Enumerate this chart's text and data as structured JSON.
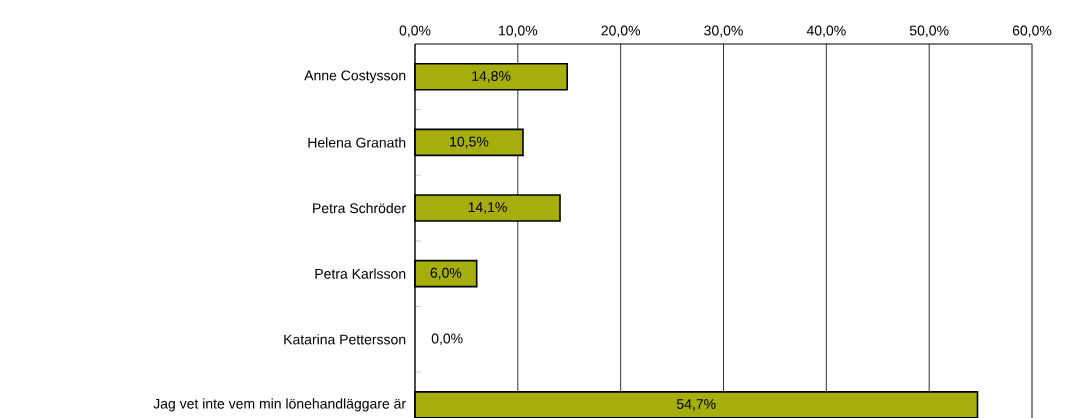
{
  "chart_data": {
    "type": "bar",
    "orientation": "horizontal",
    "categories": [
      "Anne Costysson",
      "Helena Granath",
      "Petra Schröder",
      "Petra Karlsson",
      "Katarina Pettersson",
      "Jag vet inte vem min lönehandläggare är"
    ],
    "values": [
      14.8,
      10.5,
      14.1,
      6.0,
      0.0,
      54.7
    ],
    "value_labels": [
      "14,8%",
      "10,5%",
      "14,1%",
      "6,0%",
      "0,0%",
      "54,7%"
    ],
    "color": "#a6ae0e",
    "xlim": [
      0,
      60
    ],
    "xticks": [
      {
        "value": 0,
        "label": "0,0%"
      },
      {
        "value": 10,
        "label": "10,0%"
      },
      {
        "value": 20,
        "label": "20,0%"
      },
      {
        "value": 30,
        "label": "30,0%"
      },
      {
        "value": 40,
        "label": "40,0%"
      },
      {
        "value": 50,
        "label": "50,0%"
      },
      {
        "value": 60,
        "label": "60,0%"
      }
    ],
    "grid": "x"
  }
}
